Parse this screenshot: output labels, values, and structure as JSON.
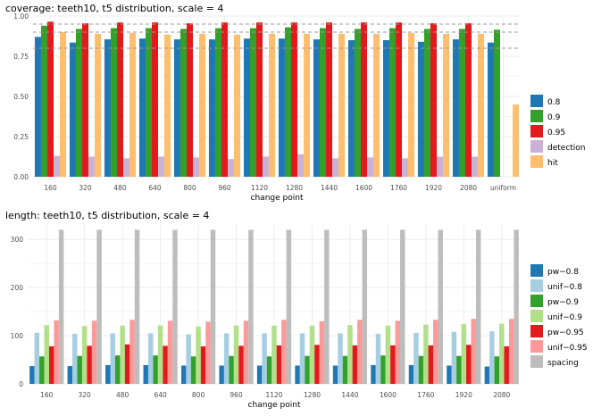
{
  "chart_data": [
    {
      "type": "bar",
      "title": "coverage: teeth10, t5 distribution, scale = 4",
      "xlabel": "change point",
      "ylabel": "",
      "ylim": [
        0,
        1.0
      ],
      "yticks": [
        "0.00",
        "0.25",
        "0.50",
        "0.75",
        "1.00"
      ],
      "reference_lines": [
        0.8,
        0.9,
        0.95
      ],
      "categories": [
        "160",
        "320",
        "480",
        "640",
        "800",
        "960",
        "1120",
        "1280",
        "1440",
        "1600",
        "1760",
        "1920",
        "2080",
        "uniform"
      ],
      "legend_position": "right",
      "series": [
        {
          "name": "0.8",
          "color": "#1f78b4",
          "values": [
            0.87,
            0.835,
            0.855,
            0.86,
            0.855,
            0.855,
            0.86,
            0.86,
            0.855,
            0.85,
            0.85,
            0.84,
            0.855,
            0.835
          ]
        },
        {
          "name": "0.9",
          "color": "#33a02c",
          "values": [
            0.94,
            0.92,
            0.925,
            0.925,
            0.92,
            0.925,
            0.925,
            0.93,
            0.925,
            0.92,
            0.925,
            0.92,
            0.92,
            0.915
          ]
        },
        {
          "name": "0.95",
          "color": "#e31a1c",
          "values": [
            0.965,
            0.955,
            0.96,
            0.96,
            0.955,
            0.96,
            0.96,
            0.96,
            0.96,
            0.96,
            0.96,
            0.955,
            0.955,
            null
          ]
        },
        {
          "name": "detection",
          "color": "#cab2d6",
          "values": [
            0.13,
            0.125,
            0.115,
            0.125,
            0.12,
            0.11,
            0.125,
            0.14,
            0.115,
            0.12,
            0.115,
            0.125,
            0.125,
            null
          ]
        },
        {
          "name": "hit",
          "color": "#fdbf6f",
          "values": [
            0.9,
            0.89,
            0.895,
            0.885,
            0.89,
            0.885,
            0.89,
            0.89,
            0.89,
            0.89,
            0.895,
            0.89,
            0.89,
            0.45
          ]
        }
      ]
    },
    {
      "type": "bar",
      "title": "length: teeth10, t5 distribution, scale = 4",
      "xlabel": "change point",
      "ylabel": "",
      "ylim": [
        0,
        330
      ],
      "yticks": [
        "0",
        "100",
        "200",
        "300"
      ],
      "categories": [
        "160",
        "320",
        "480",
        "640",
        "800",
        "960",
        "1120",
        "1280",
        "1440",
        "1600",
        "1760",
        "1920",
        "2080"
      ],
      "legend_position": "right",
      "series": [
        {
          "name": "pw−0.8",
          "color": "#1f78b4",
          "values": [
            37,
            37,
            39,
            39,
            38,
            38,
            38,
            38,
            38,
            39,
            39,
            38,
            36
          ]
        },
        {
          "name": "unif−0.8",
          "color": "#a6cee3",
          "values": [
            106,
            104,
            105,
            105,
            103,
            105,
            105,
            105,
            105,
            104,
            106,
            108,
            109
          ]
        },
        {
          "name": "pw−0.9",
          "color": "#33a02c",
          "values": [
            57,
            58,
            59,
            59,
            57,
            58,
            57,
            58,
            58,
            59,
            58,
            58,
            57
          ]
        },
        {
          "name": "unif−0.9",
          "color": "#b2df8a",
          "values": [
            122,
            120,
            121,
            121,
            119,
            121,
            121,
            121,
            122,
            121,
            123,
            124,
            125
          ]
        },
        {
          "name": "pw−0.95",
          "color": "#e31a1c",
          "values": [
            78,
            79,
            82,
            79,
            78,
            79,
            80,
            81,
            80,
            80,
            80,
            81,
            78
          ]
        },
        {
          "name": "unif−0.95",
          "color": "#fb9a99",
          "values": [
            132,
            131,
            133,
            131,
            129,
            131,
            133,
            130,
            133,
            131,
            133,
            135,
            135
          ]
        },
        {
          "name": "spacing",
          "color": "#bdbdbd",
          "values": [
            320,
            320,
            320,
            320,
            320,
            320,
            320,
            320,
            320,
            320,
            320,
            320,
            320
          ]
        }
      ]
    }
  ]
}
